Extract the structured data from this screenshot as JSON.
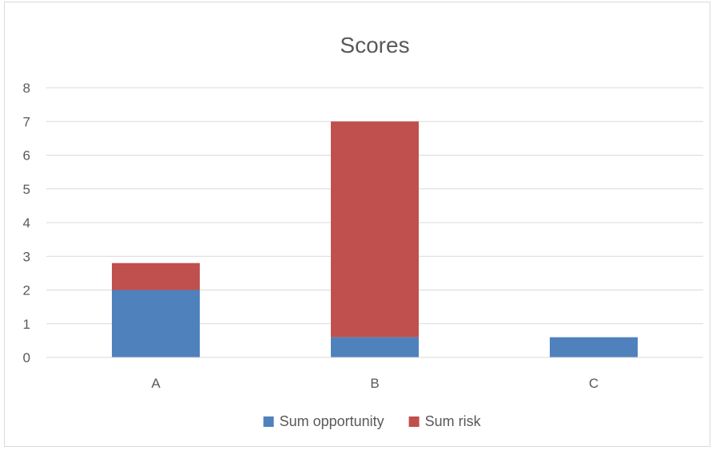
{
  "chart_data": {
    "type": "bar",
    "stacked": true,
    "title": "Scores",
    "xlabel": "",
    "ylabel": "",
    "categories": [
      "A",
      "B",
      "C"
    ],
    "series": [
      {
        "name": "Sum opportunity",
        "values": [
          2,
          0.6,
          0.6
        ],
        "color": "#4f81bd"
      },
      {
        "name": "Sum risk",
        "values": [
          0.8,
          6.4,
          0
        ],
        "color": "#c0504d"
      }
    ],
    "ylim": [
      0,
      8
    ],
    "yticks": [
      "0",
      "1",
      "2",
      "3",
      "4",
      "5",
      "6",
      "7",
      "8"
    ],
    "grid": true,
    "legend_position": "bottom"
  }
}
